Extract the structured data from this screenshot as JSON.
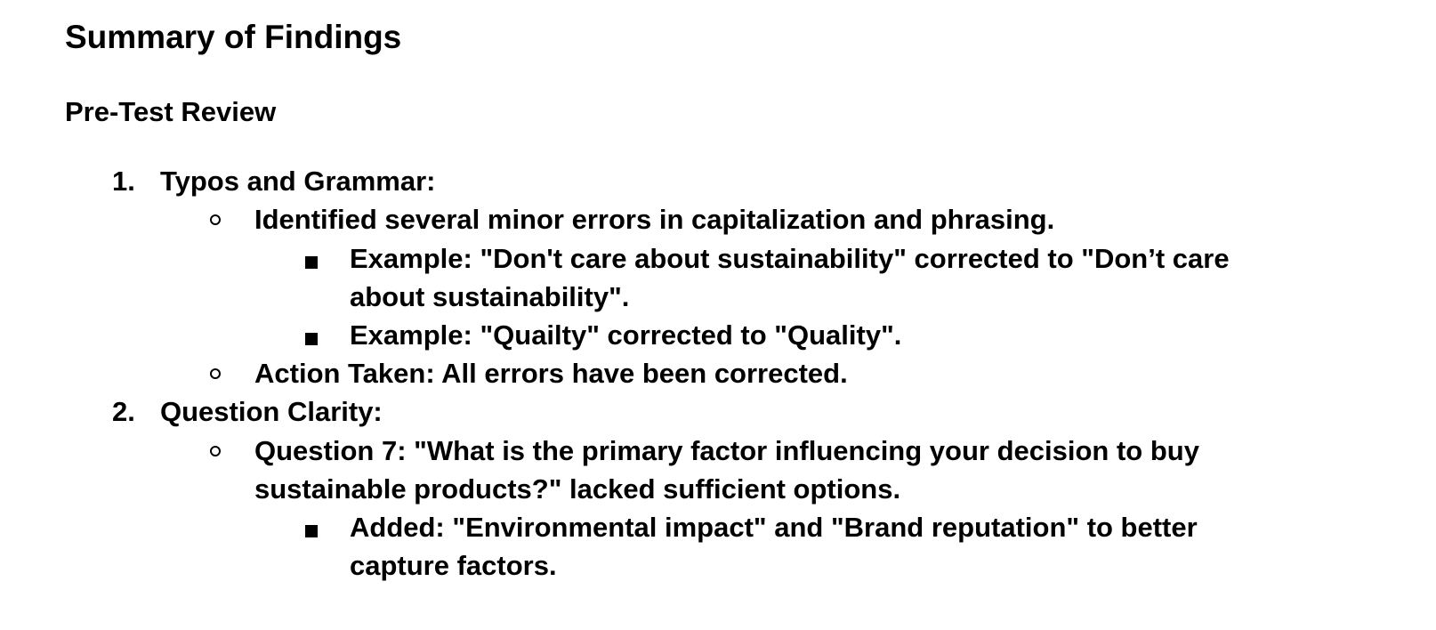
{
  "heading": "Summary of Findings",
  "subheading": "Pre-Test Review",
  "items": [
    {
      "number": "1.",
      "title": "Typos and Grammar:",
      "sub": [
        {
          "text": "Identified several minor errors in capitalization and phrasing.",
          "sub": [
            {
              "text_lines": [
                "Example: \"Don't care about sustainability\" corrected to \"Don’t care",
                "about sustainability\"."
              ]
            },
            {
              "text_lines": [
                "Example: \"Quailty\" corrected to \"Quality\"."
              ]
            }
          ]
        },
        {
          "text": "Action Taken: All errors have been corrected."
        }
      ]
    },
    {
      "number": "2.",
      "title": "Question Clarity:",
      "sub": [
        {
          "text_lines": [
            "Question 7: \"What is the primary factor influencing your decision to buy",
            "sustainable products?\" lacked sufficient options."
          ],
          "sub": [
            {
              "text_lines": [
                "Added: \"Environmental impact\" and \"Brand reputation\" to better",
                "capture factors."
              ]
            }
          ]
        }
      ]
    }
  ]
}
